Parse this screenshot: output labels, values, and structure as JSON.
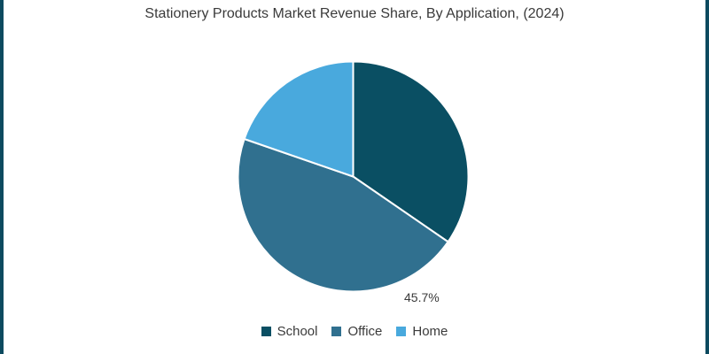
{
  "title": "Stationery Products Market Revenue Share, By Application, (2024)",
  "frame": {
    "border_color": "#0c4a5f",
    "background_color": "#ffffff"
  },
  "pct_label": "45.7%",
  "legend": {
    "items": [
      {
        "label": "School",
        "color": "#0a4f63"
      },
      {
        "label": "Office",
        "color": "#30708f"
      },
      {
        "label": "Home",
        "color": "#49a9dd"
      }
    ]
  },
  "chart_data": {
    "type": "pie",
    "title": "Stationery Products Market Revenue Share, By Application, (2024)",
    "labels": [
      "School",
      "Office",
      "Home"
    ],
    "values": [
      34.6,
      45.7,
      19.7
    ],
    "unit": "%",
    "colors": [
      "#0a4f63",
      "#30708f",
      "#49a9dd"
    ],
    "start_angle": "12-oclock",
    "direction": "clockwise",
    "slice_separator_color": "#ffffff",
    "legend_position": "bottom",
    "annotations": [
      {
        "text": "45.7%",
        "slice": "Office",
        "position": "outside-lower-right"
      }
    ]
  }
}
